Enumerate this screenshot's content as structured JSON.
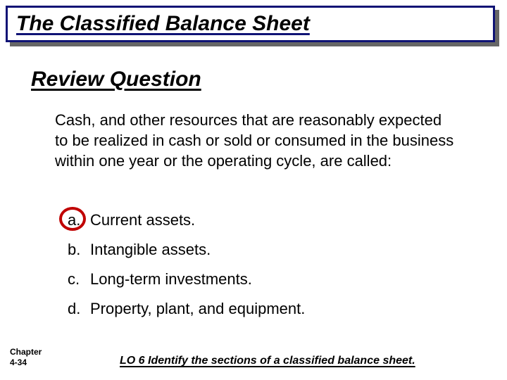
{
  "title": "The Classified Balance Sheet",
  "subtitle": "Review Question",
  "question": "Cash, and other resources that are reasonably expected to be realized in cash or sold or consumed in the business within one year or the operating cycle, are called:",
  "options": [
    {
      "letter": "a.",
      "text": "Current assets."
    },
    {
      "letter": "b.",
      "text": "Intangible assets."
    },
    {
      "letter": "c.",
      "text": "Long-term investments."
    },
    {
      "letter": "d.",
      "text": "Property, plant, and equipment."
    }
  ],
  "correct_index": 0,
  "chapter_line1": "Chapter",
  "chapter_line2": "4-34",
  "lo_text": "LO 6  Identify the sections of a classified balance sheet.",
  "colors": {
    "title_border": "#0f1375",
    "circle": "#c00000",
    "shadow": "#666666",
    "bg": "#ffffff"
  }
}
